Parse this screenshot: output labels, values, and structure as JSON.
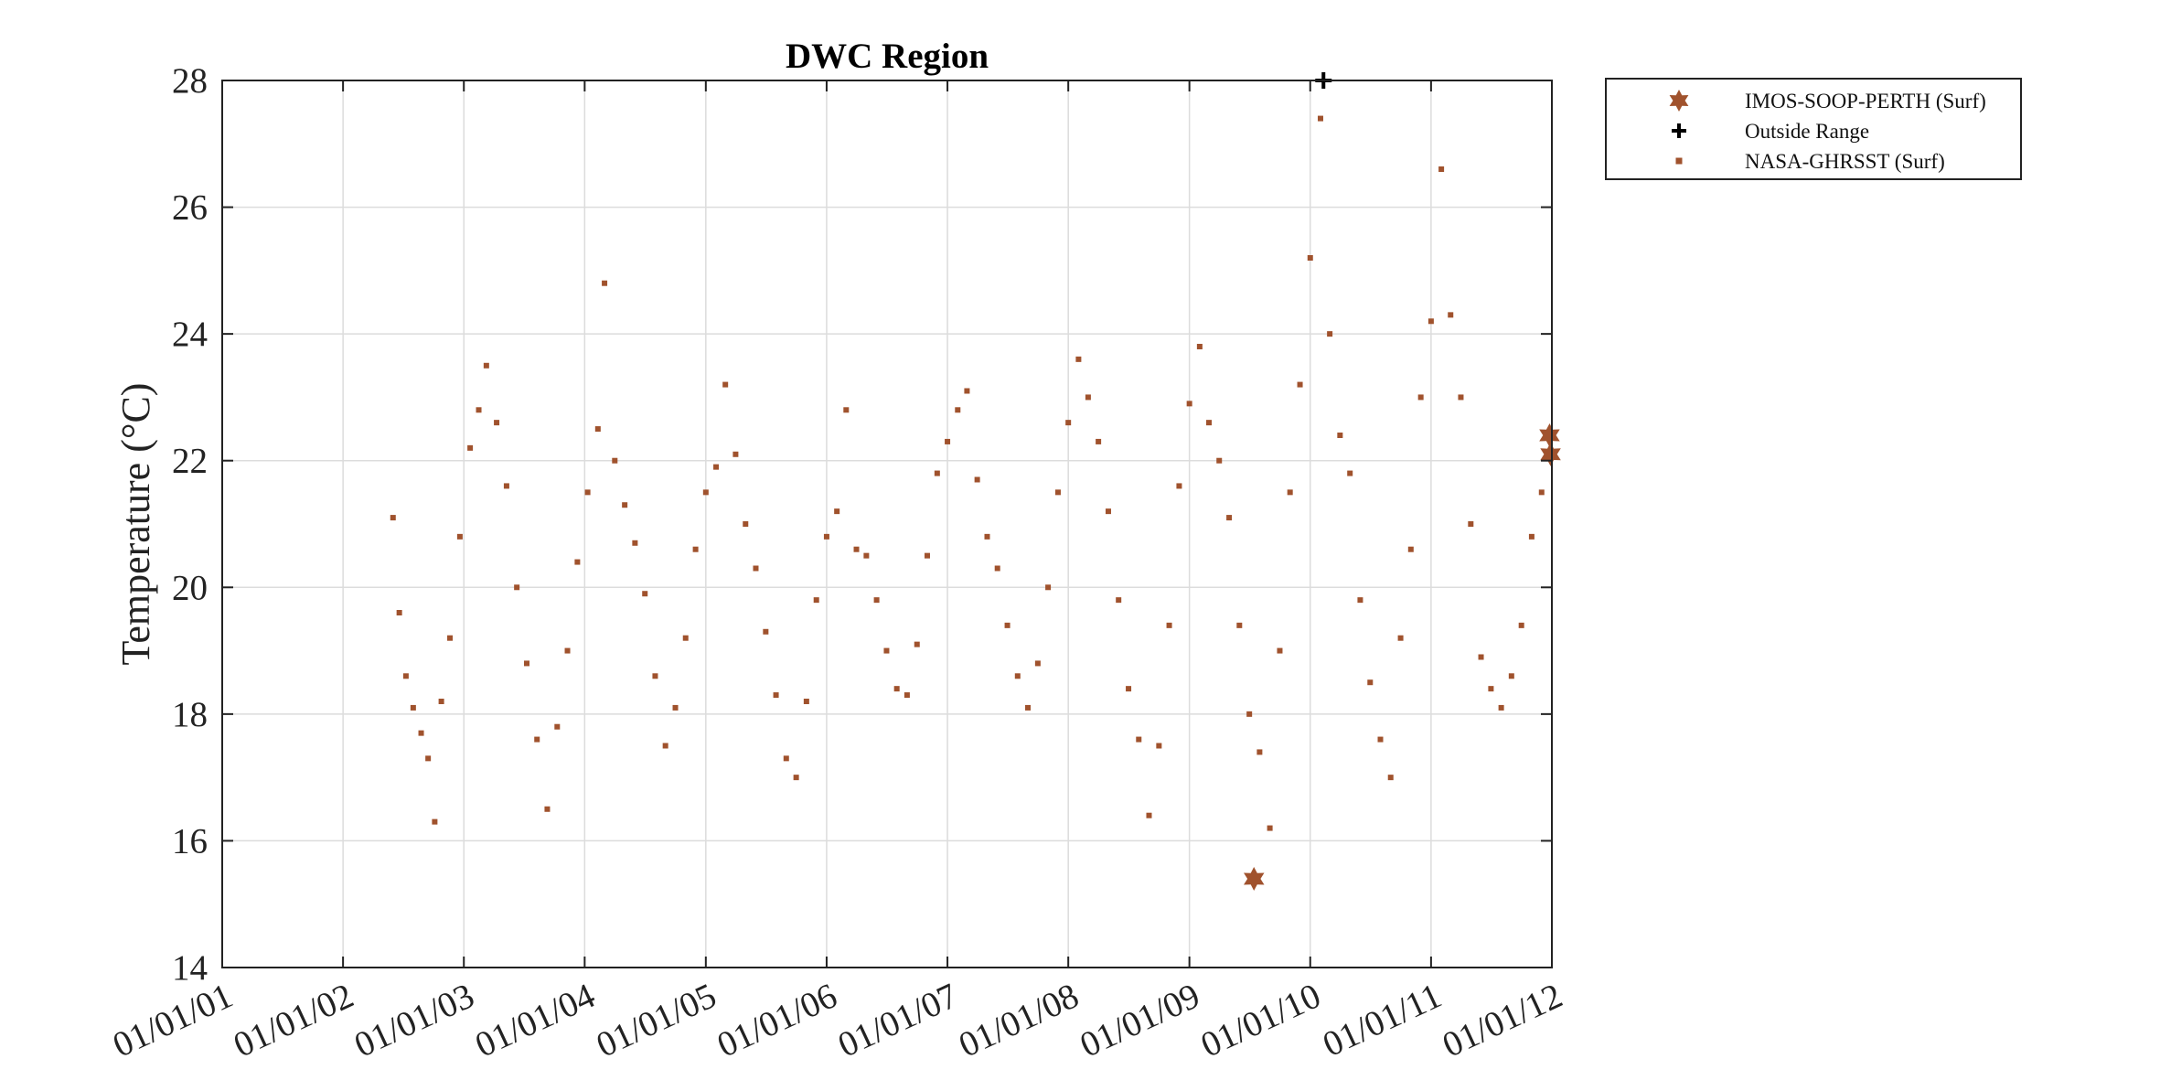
{
  "chart_data": {
    "type": "scatter",
    "title": "DWC Region",
    "xlabel": "",
    "ylabel": "Temperature (°C)",
    "xlim": [
      "2001-01-01",
      "2012-01-01"
    ],
    "ylim": [
      14,
      28
    ],
    "xticks": [
      "01/01/01",
      "01/01/02",
      "01/01/03",
      "01/01/04",
      "01/01/05",
      "01/01/06",
      "01/01/07",
      "01/01/08",
      "01/01/09",
      "01/01/10",
      "01/01/11",
      "01/01/12"
    ],
    "yticks": [
      14,
      16,
      18,
      20,
      22,
      24,
      26,
      28
    ],
    "grid": true,
    "legend_position": "outside-top-right",
    "marker_color": "#A0522D",
    "series": [
      {
        "name": "IMOS-SOOP-PERTH (Surf)",
        "marker": "hexagram",
        "points": [
          {
            "x": "2009-07-15",
            "y": 15.4
          },
          {
            "x": "2011-12-25",
            "y": 22.4
          },
          {
            "x": "2011-12-28",
            "y": 22.1
          }
        ]
      },
      {
        "name": "Outside Range",
        "marker": "plus",
        "points": [
          {
            "x": "2010-02-10",
            "y": 28.0
          }
        ]
      },
      {
        "name": "NASA-GHRSST (Surf)",
        "marker": "square",
        "points": [
          {
            "x": "2002-06-01",
            "y": 21.1
          },
          {
            "x": "2002-06-20",
            "y": 19.6
          },
          {
            "x": "2002-07-10",
            "y": 18.6
          },
          {
            "x": "2002-08-01",
            "y": 18.1
          },
          {
            "x": "2002-08-25",
            "y": 17.7
          },
          {
            "x": "2002-09-15",
            "y": 17.3
          },
          {
            "x": "2002-10-05",
            "y": 16.3
          },
          {
            "x": "2002-10-25",
            "y": 18.2
          },
          {
            "x": "2002-11-20",
            "y": 19.2
          },
          {
            "x": "2002-12-20",
            "y": 20.8
          },
          {
            "x": "2003-01-20",
            "y": 22.2
          },
          {
            "x": "2003-02-15",
            "y": 22.8
          },
          {
            "x": "2003-03-10",
            "y": 23.5
          },
          {
            "x": "2003-04-10",
            "y": 22.6
          },
          {
            "x": "2003-05-10",
            "y": 21.6
          },
          {
            "x": "2003-06-10",
            "y": 20.0
          },
          {
            "x": "2003-07-10",
            "y": 18.8
          },
          {
            "x": "2003-08-10",
            "y": 17.6
          },
          {
            "x": "2003-09-10",
            "y": 16.5
          },
          {
            "x": "2003-10-10",
            "y": 17.8
          },
          {
            "x": "2003-11-10",
            "y": 19.0
          },
          {
            "x": "2003-12-10",
            "y": 20.4
          },
          {
            "x": "2004-01-10",
            "y": 21.5
          },
          {
            "x": "2004-02-10",
            "y": 22.5
          },
          {
            "x": "2004-03-01",
            "y": 24.8
          },
          {
            "x": "2004-04-01",
            "y": 22.0
          },
          {
            "x": "2004-05-01",
            "y": 21.3
          },
          {
            "x": "2004-06-01",
            "y": 20.7
          },
          {
            "x": "2004-07-01",
            "y": 19.9
          },
          {
            "x": "2004-08-01",
            "y": 18.6
          },
          {
            "x": "2004-09-01",
            "y": 17.5
          },
          {
            "x": "2004-10-01",
            "y": 18.1
          },
          {
            "x": "2004-11-01",
            "y": 19.2
          },
          {
            "x": "2004-12-01",
            "y": 20.6
          },
          {
            "x": "2005-01-01",
            "y": 21.5
          },
          {
            "x": "2005-02-01",
            "y": 21.9
          },
          {
            "x": "2005-03-01",
            "y": 23.2
          },
          {
            "x": "2005-04-01",
            "y": 22.1
          },
          {
            "x": "2005-05-01",
            "y": 21.0
          },
          {
            "x": "2005-06-01",
            "y": 20.3
          },
          {
            "x": "2005-07-01",
            "y": 19.3
          },
          {
            "x": "2005-08-01",
            "y": 18.3
          },
          {
            "x": "2005-09-01",
            "y": 17.3
          },
          {
            "x": "2005-10-01",
            "y": 17.0
          },
          {
            "x": "2005-11-01",
            "y": 18.2
          },
          {
            "x": "2005-12-01",
            "y": 19.8
          },
          {
            "x": "2006-01-01",
            "y": 20.8
          },
          {
            "x": "2006-02-01",
            "y": 21.2
          },
          {
            "x": "2006-03-01",
            "y": 22.8
          },
          {
            "x": "2006-04-01",
            "y": 20.6
          },
          {
            "x": "2006-05-01",
            "y": 20.5
          },
          {
            "x": "2006-06-01",
            "y": 19.8
          },
          {
            "x": "2006-07-01",
            "y": 19.0
          },
          {
            "x": "2006-08-01",
            "y": 18.4
          },
          {
            "x": "2006-09-01",
            "y": 18.3
          },
          {
            "x": "2006-10-01",
            "y": 19.1
          },
          {
            "x": "2006-11-01",
            "y": 20.5
          },
          {
            "x": "2006-12-01",
            "y": 21.8
          },
          {
            "x": "2007-01-01",
            "y": 22.3
          },
          {
            "x": "2007-02-01",
            "y": 22.8
          },
          {
            "x": "2007-03-01",
            "y": 23.1
          },
          {
            "x": "2007-04-01",
            "y": 21.7
          },
          {
            "x": "2007-05-01",
            "y": 20.8
          },
          {
            "x": "2007-06-01",
            "y": 20.3
          },
          {
            "x": "2007-07-01",
            "y": 19.4
          },
          {
            "x": "2007-08-01",
            "y": 18.6
          },
          {
            "x": "2007-09-01",
            "y": 18.1
          },
          {
            "x": "2007-10-01",
            "y": 18.8
          },
          {
            "x": "2007-11-01",
            "y": 20.0
          },
          {
            "x": "2007-12-01",
            "y": 21.5
          },
          {
            "x": "2008-01-01",
            "y": 22.6
          },
          {
            "x": "2008-02-01",
            "y": 23.6
          },
          {
            "x": "2008-03-01",
            "y": 23.0
          },
          {
            "x": "2008-04-01",
            "y": 22.3
          },
          {
            "x": "2008-05-01",
            "y": 21.2
          },
          {
            "x": "2008-06-01",
            "y": 19.8
          },
          {
            "x": "2008-07-01",
            "y": 18.4
          },
          {
            "x": "2008-08-01",
            "y": 17.6
          },
          {
            "x": "2008-09-01",
            "y": 16.4
          },
          {
            "x": "2008-10-01",
            "y": 17.5
          },
          {
            "x": "2008-11-01",
            "y": 19.4
          },
          {
            "x": "2008-12-01",
            "y": 21.6
          },
          {
            "x": "2009-01-01",
            "y": 22.9
          },
          {
            "x": "2009-02-01",
            "y": 23.8
          },
          {
            "x": "2009-03-01",
            "y": 22.6
          },
          {
            "x": "2009-04-01",
            "y": 22.0
          },
          {
            "x": "2009-05-01",
            "y": 21.1
          },
          {
            "x": "2009-06-01",
            "y": 19.4
          },
          {
            "x": "2009-07-01",
            "y": 18.0
          },
          {
            "x": "2009-08-01",
            "y": 17.4
          },
          {
            "x": "2009-09-01",
            "y": 16.2
          },
          {
            "x": "2009-10-01",
            "y": 19.0
          },
          {
            "x": "2009-11-01",
            "y": 21.5
          },
          {
            "x": "2009-12-01",
            "y": 23.2
          },
          {
            "x": "2010-01-01",
            "y": 25.2
          },
          {
            "x": "2010-02-01",
            "y": 27.4
          },
          {
            "x": "2010-03-01",
            "y": 24.0
          },
          {
            "x": "2010-04-01",
            "y": 22.4
          },
          {
            "x": "2010-05-01",
            "y": 21.8
          },
          {
            "x": "2010-06-01",
            "y": 19.8
          },
          {
            "x": "2010-07-01",
            "y": 18.5
          },
          {
            "x": "2010-08-01",
            "y": 17.6
          },
          {
            "x": "2010-09-01",
            "y": 17.0
          },
          {
            "x": "2010-10-01",
            "y": 19.2
          },
          {
            "x": "2010-11-01",
            "y": 20.6
          },
          {
            "x": "2010-12-01",
            "y": 23.0
          },
          {
            "x": "2011-01-01",
            "y": 24.2
          },
          {
            "x": "2011-02-01",
            "y": 26.6
          },
          {
            "x": "2011-03-01",
            "y": 24.3
          },
          {
            "x": "2011-04-01",
            "y": 23.0
          },
          {
            "x": "2011-05-01",
            "y": 21.0
          },
          {
            "x": "2011-06-01",
            "y": 18.9
          },
          {
            "x": "2011-07-01",
            "y": 18.4
          },
          {
            "x": "2011-08-01",
            "y": 18.1
          },
          {
            "x": "2011-09-01",
            "y": 18.6
          },
          {
            "x": "2011-10-01",
            "y": 19.4
          },
          {
            "x": "2011-11-01",
            "y": 20.8
          },
          {
            "x": "2011-12-01",
            "y": 21.5
          }
        ]
      }
    ]
  }
}
